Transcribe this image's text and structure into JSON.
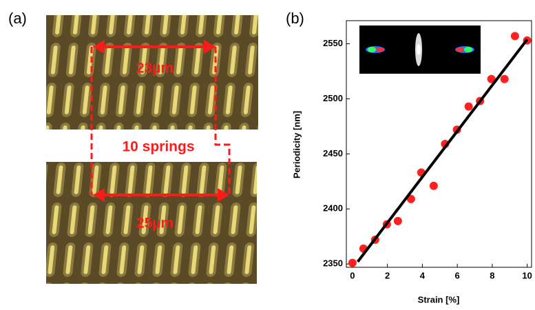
{
  "panel_a": {
    "label": "(a)",
    "top_spacing": "23µm",
    "springs": "10 springs",
    "bottom_spacing": "25µm"
  },
  "chart_data": {
    "type": "scatter",
    "label": "(b)",
    "x_label": "Strain [%]",
    "y_label": "Periodicity [nm]",
    "xlim": [
      -0.35,
      10.25
    ],
    "ylim": [
      2347,
      2571
    ],
    "xticks": [
      0,
      2,
      4,
      6,
      8,
      10
    ],
    "yticks": [
      2350,
      2400,
      2450,
      2500,
      2550
    ],
    "series": [
      {
        "mode": "markers",
        "color": "#ff2020",
        "x": [
          0,
          0.63,
          1.3,
          1.97,
          2.6,
          3.35,
          3.94,
          4.65,
          5.3,
          5.98,
          6.65,
          7.3,
          7.95,
          8.7,
          9.3,
          10
        ],
        "values": [
          2351,
          2364,
          2372,
          2386,
          2389,
          2409,
          2433,
          2421,
          2459,
          2472,
          2493,
          2498,
          2518,
          2518,
          2557,
          2553
        ]
      },
      {
        "mode": "line",
        "color": "#000000",
        "x": [
          0.3,
          10
        ],
        "values": [
          2352,
          2554
        ]
      }
    ]
  }
}
